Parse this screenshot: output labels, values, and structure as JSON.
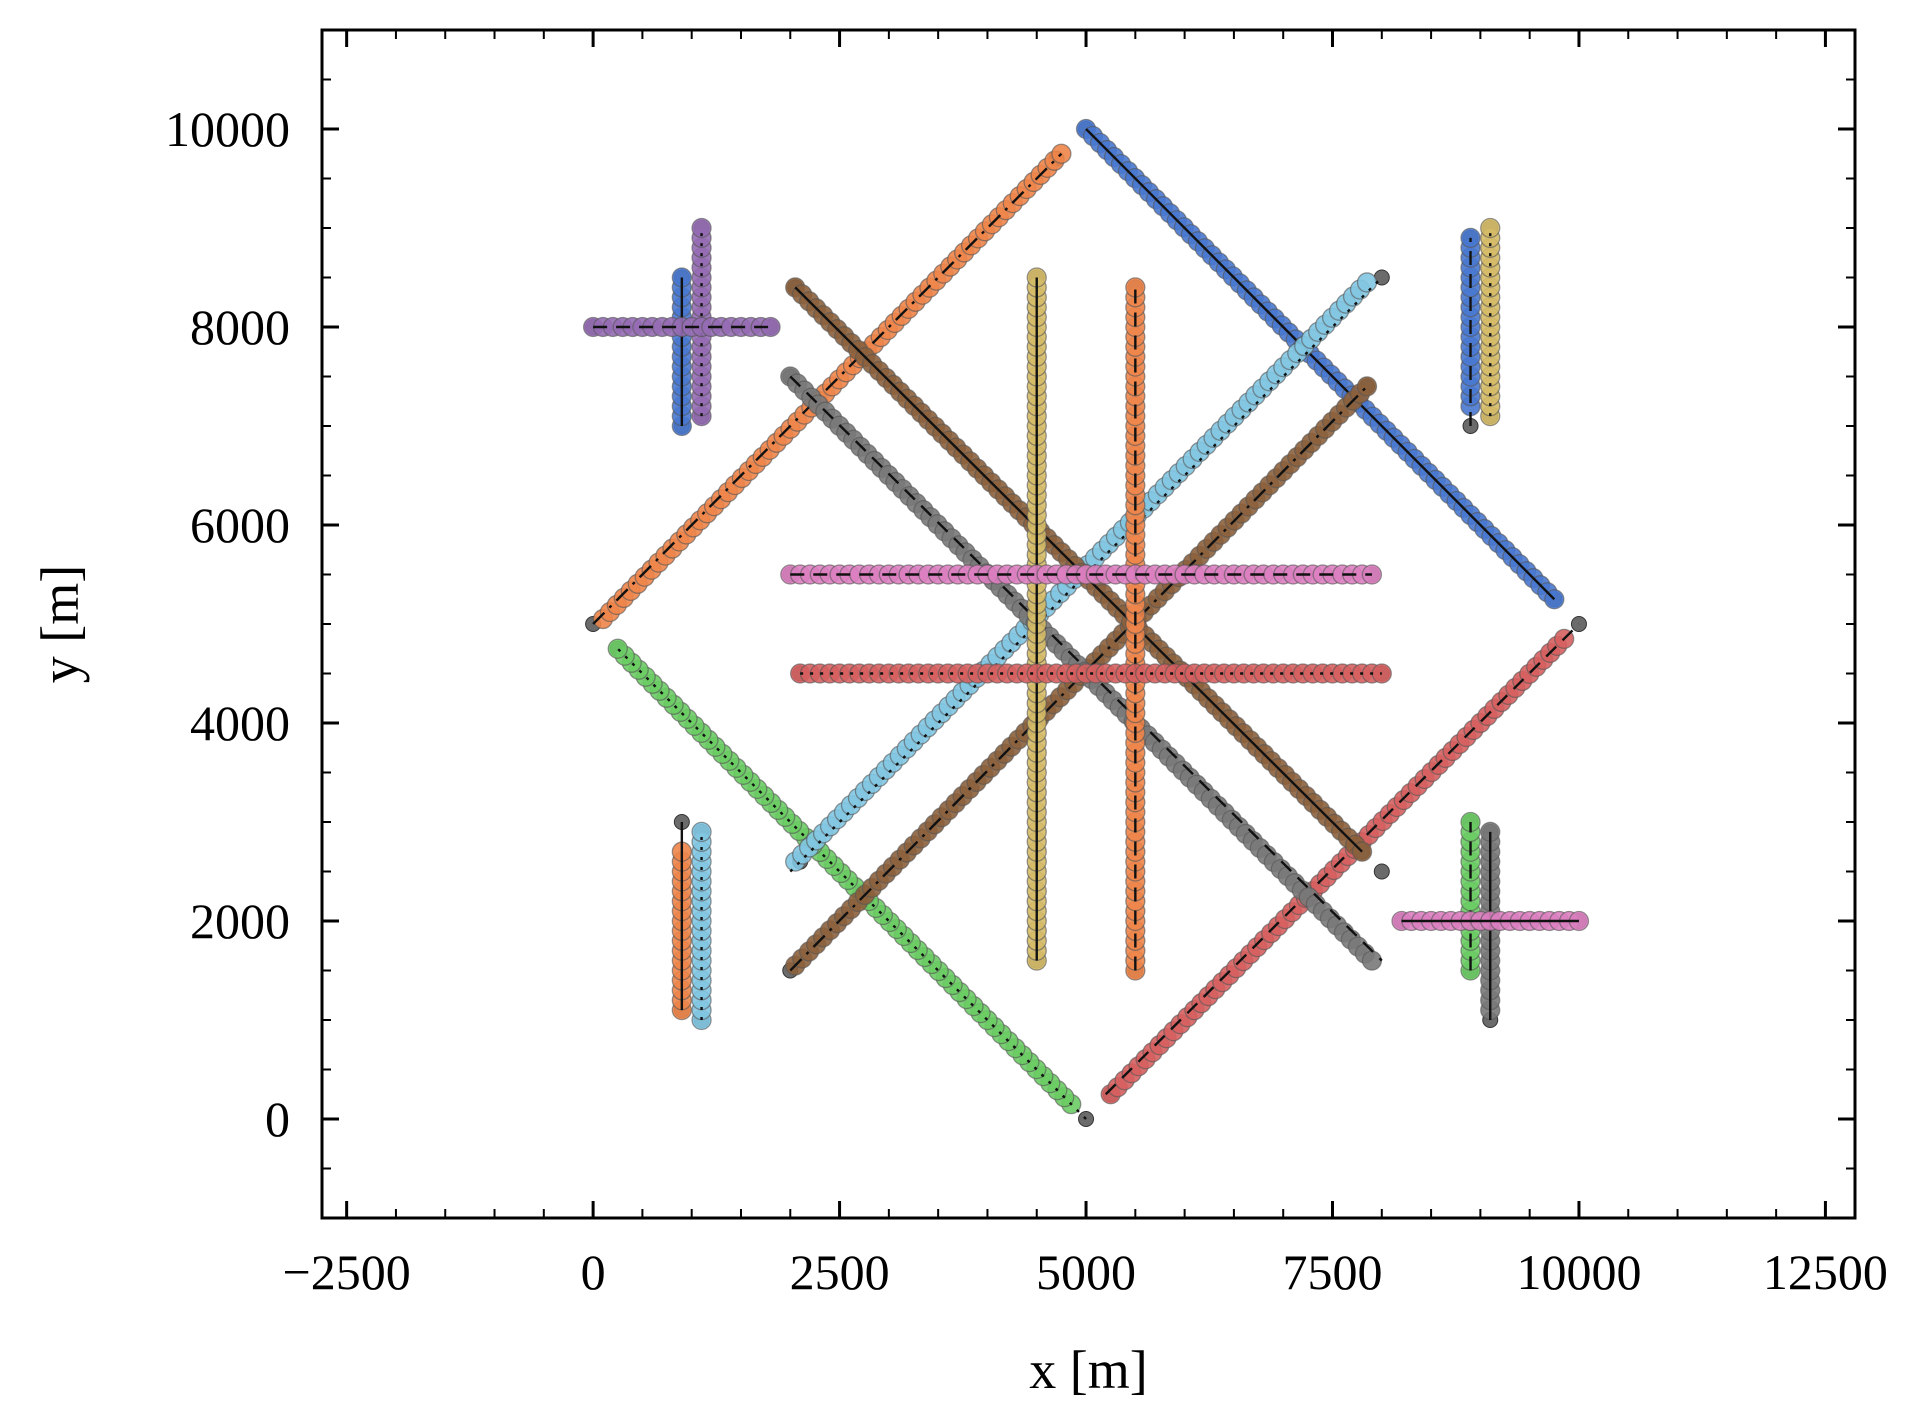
{
  "chart_data": {
    "type": "scatter",
    "title": "",
    "xlabel": "x [m]",
    "ylabel": "y [m]",
    "xlim": [
      -2750,
      12800
    ],
    "ylim": [
      -1000,
      11000
    ],
    "xticks": [
      -2500,
      0,
      2500,
      5000,
      7500,
      10000,
      12500
    ],
    "xtick_labels": [
      "−2500",
      "0",
      "2500",
      "5000",
      "7500",
      "10000",
      "12500"
    ],
    "yticks": [
      0,
      2000,
      4000,
      6000,
      8000,
      10000
    ],
    "ytick_labels": [
      "0",
      "2000",
      "4000",
      "6000",
      "8000",
      "10000"
    ],
    "grid": false,
    "legend": "none",
    "series": [
      {
        "color": "#4878d0",
        "line": "solid",
        "start": [
          5000,
          10000
        ],
        "end": [
          9750,
          5250
        ],
        "marker_start": [
          5000,
          10000
        ],
        "marker_end": [
          9750,
          5250
        ],
        "ref_start": [
          5000,
          10000
        ],
        "ref_end": [
          9750,
          5250
        ]
      },
      {
        "color": "#ee854a",
        "line": "dashdot",
        "start": [
          0,
          5000
        ],
        "end": [
          4750,
          9750
        ],
        "marker_start": [
          100,
          5050
        ],
        "marker_end": [
          4750,
          9750
        ],
        "ref_start": [
          0,
          5000
        ],
        "ref_end": [
          4700,
          9700
        ]
      },
      {
        "color": "#6acc64",
        "line": "dotted",
        "start": [
          5000,
          0
        ],
        "end": [
          250,
          4750
        ],
        "marker_start": [
          4850,
          150
        ],
        "marker_end": [
          250,
          4750
        ],
        "ref_start": [
          5000,
          0
        ],
        "ref_end": [
          250,
          4750
        ]
      },
      {
        "color": "#d65f5f",
        "line": "dashed",
        "start": [
          5200,
          250
        ],
        "end": [
          10000,
          5000
        ],
        "marker_start": [
          5250,
          250
        ],
        "marker_end": [
          9850,
          4850
        ],
        "ref_start": [
          5250,
          250
        ],
        "ref_end": [
          10000,
          5000
        ]
      },
      {
        "color": "#82c6e2",
        "line": "dotted",
        "start": [
          2000,
          2500
        ],
        "end": [
          8000,
          8500
        ],
        "marker_start": [
          2050,
          2600
        ],
        "marker_end": [
          7850,
          8450
        ],
        "ref_start": [
          2100,
          2600
        ],
        "ref_end": [
          8000,
          8500
        ]
      },
      {
        "color": "#8c613c",
        "line": "dashdot",
        "start": [
          2000,
          1500
        ],
        "end": [
          7850,
          7400
        ],
        "marker_start": [
          2050,
          1550
        ],
        "marker_end": [
          7850,
          7400
        ],
        "ref_start": [
          2000,
          1500
        ],
        "ref_end": [
          7850,
          7400
        ]
      },
      {
        "color": "#8c613c",
        "line": "solid",
        "start": [
          2050,
          8400
        ],
        "end": [
          7800,
          2700
        ],
        "marker_start": [
          2050,
          8400
        ],
        "marker_end": [
          7800,
          2700
        ],
        "ref_start": [
          2050,
          8400
        ],
        "ref_end": [
          7800,
          2700
        ]
      },
      {
        "color": "#797979",
        "line": "dashed",
        "start": [
          2000,
          7500
        ],
        "end": [
          8000,
          1600
        ],
        "marker_start": [
          2000,
          7500
        ],
        "marker_end": [
          7900,
          1600
        ],
        "ref_start": [
          2000,
          7500
        ],
        "ref_end": [
          8000,
          2500
        ]
      },
      {
        "color": "#d5bb67",
        "line": "solid",
        "start": [
          4500,
          1600
        ],
        "end": [
          4500,
          8500
        ],
        "marker_start": [
          4500,
          1600
        ],
        "marker_end": [
          4500,
          8500
        ],
        "ref_start": [
          4500,
          1600
        ],
        "ref_end": [
          4500,
          8500
        ]
      },
      {
        "color": "#ee854a",
        "line": "dashed",
        "start": [
          5500,
          1500
        ],
        "end": [
          5500,
          8400
        ],
        "marker_start": [
          5500,
          1500
        ],
        "marker_end": [
          5500,
          8400
        ],
        "ref_start": [
          5500,
          1500
        ],
        "ref_end": [
          5500,
          8400
        ]
      },
      {
        "color": "#dc7ec0",
        "line": "dashed",
        "start": [
          2000,
          5500
        ],
        "end": [
          7900,
          5500
        ],
        "marker_start": [
          2000,
          5500
        ],
        "marker_end": [
          7900,
          5500
        ],
        "ref_start": [
          2000,
          5500
        ],
        "ref_end": [
          7900,
          5500
        ]
      },
      {
        "color": "#d65f5f",
        "line": "dotted",
        "start": [
          2100,
          4500
        ],
        "end": [
          8000,
          4500
        ],
        "marker_start": [
          2100,
          4500
        ],
        "marker_end": [
          8000,
          4500
        ],
        "ref_start": [
          2100,
          4500
        ],
        "ref_end": [
          8000,
          4500
        ]
      },
      {
        "color": "#4878d0",
        "line": "solid",
        "start": [
          900,
          7000
        ],
        "end": [
          900,
          8500
        ],
        "marker_start": [
          900,
          7000
        ],
        "marker_end": [
          900,
          8500
        ],
        "ref_start": [
          900,
          7000
        ],
        "ref_end": [
          900,
          8500
        ]
      },
      {
        "color": "#956cb4",
        "line": "dotted",
        "start": [
          1100,
          7100
        ],
        "end": [
          1100,
          9000
        ],
        "marker_start": [
          1100,
          7100
        ],
        "marker_end": [
          1100,
          9000
        ],
        "ref_start": [
          1100,
          7100
        ],
        "ref_end": [
          1100,
          9000
        ]
      },
      {
        "color": "#956cb4",
        "line": "dashed",
        "start": [
          0,
          8000
        ],
        "end": [
          1800,
          8000
        ],
        "marker_start": [
          0,
          8000
        ],
        "marker_end": [
          1800,
          8000
        ],
        "ref_start": [
          0,
          8000
        ],
        "ref_end": [
          1800,
          8000
        ]
      },
      {
        "color": "#4878d0",
        "line": "dashed",
        "start": [
          8900,
          7000
        ],
        "end": [
          8900,
          8900
        ],
        "marker_start": [
          8900,
          7200
        ],
        "marker_end": [
          8900,
          8900
        ],
        "ref_start": [
          8900,
          7000
        ],
        "ref_end": [
          8900,
          8900
        ]
      },
      {
        "color": "#d5bb67",
        "line": "dotted",
        "start": [
          9100,
          7100
        ],
        "end": [
          9100,
          9000
        ],
        "marker_start": [
          9100,
          7100
        ],
        "marker_end": [
          9100,
          9000
        ],
        "ref_start": [
          9100,
          7100
        ],
        "ref_end": [
          9100,
          9000
        ]
      },
      {
        "color": "#ee854a",
        "line": "solid",
        "start": [
          900,
          1100
        ],
        "end": [
          900,
          3000
        ],
        "marker_start": [
          900,
          1100
        ],
        "marker_end": [
          900,
          2700
        ],
        "ref_start": [
          900,
          1100
        ],
        "ref_end": [
          900,
          3000
        ]
      },
      {
        "color": "#82c6e2",
        "line": "dotted",
        "start": [
          1100,
          1000
        ],
        "end": [
          1100,
          2900
        ],
        "marker_start": [
          1100,
          1000
        ],
        "marker_end": [
          1100,
          2900
        ],
        "ref_start": [
          1100,
          1000
        ],
        "ref_end": [
          1100,
          2900
        ]
      },
      {
        "color": "#6acc64",
        "line": "dashed",
        "start": [
          8900,
          1500
        ],
        "end": [
          8900,
          3000
        ],
        "marker_start": [
          8900,
          1500
        ],
        "marker_end": [
          8900,
          3000
        ],
        "ref_start": [
          8900,
          1500
        ],
        "ref_end": [
          8900,
          3000
        ]
      },
      {
        "color": "#797979",
        "line": "solid",
        "start": [
          9100,
          1000
        ],
        "end": [
          9100,
          2900
        ],
        "marker_start": [
          9100,
          1100
        ],
        "marker_end": [
          9100,
          2900
        ],
        "ref_start": [
          9100,
          1000
        ],
        "ref_end": [
          9100,
          2900
        ]
      },
      {
        "color": "#dc7ec0",
        "line": "solid",
        "start": [
          8200,
          2000
        ],
        "end": [
          10000,
          2000
        ],
        "marker_start": [
          8200,
          2000
        ],
        "marker_end": [
          10000,
          2000
        ],
        "ref_start": [
          8200,
          2000
        ],
        "ref_end": [
          10000,
          2000
        ]
      }
    ]
  }
}
